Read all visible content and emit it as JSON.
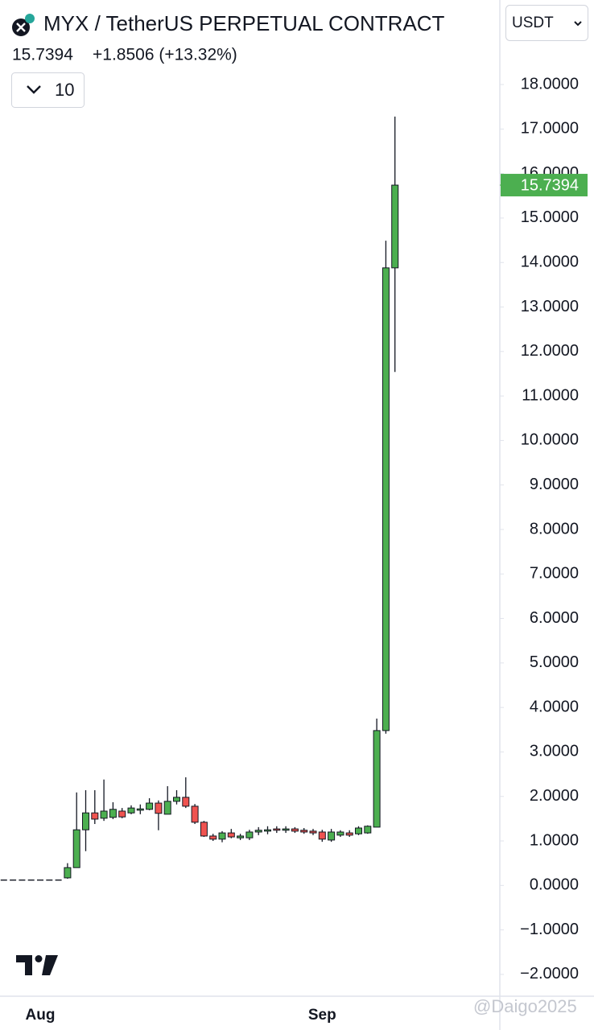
{
  "chart_data": {
    "type": "candlestick",
    "title": "MYX / TetherUS PERPETUAL CONTRACT",
    "last_price": 15.7394,
    "change": "+1.8506 (+13.32%)",
    "interval": "10",
    "currency": "USDT",
    "watermark": "@Daigo2025",
    "up_color": "#4caf50",
    "down_color": "#ef5350",
    "categories": [
      null,
      null,
      null,
      null,
      "Aug",
      null,
      null,
      null,
      null,
      null,
      null,
      null,
      null,
      null,
      null,
      null,
      null,
      null,
      null,
      null,
      null,
      null,
      null,
      null,
      null,
      null,
      null,
      null,
      null,
      null,
      null,
      null,
      null,
      null,
      null,
      "Sep",
      null,
      null,
      null,
      null,
      null,
      null,
      null,
      null
    ],
    "open": [
      0.12,
      0.12,
      0.12,
      0.12,
      0.12,
      0.12,
      0.12,
      0.17,
      0.4,
      1.25,
      1.63,
      1.51,
      1.53,
      1.67,
      1.63,
      1.69,
      1.71,
      1.85,
      1.6,
      1.89,
      1.98,
      1.78,
      1.42,
      1.11,
      1.04,
      1.18,
      1.07,
      1.07,
      1.2,
      1.22,
      1.27,
      1.24,
      1.27,
      1.24,
      1.22,
      1.2,
      1.02,
      1.13,
      1.18,
      1.16,
      1.18,
      1.31,
      3.48,
      13.88
    ],
    "high": [
      0.12,
      0.12,
      0.12,
      0.12,
      0.12,
      0.12,
      0.12,
      0.5,
      2.09,
      2.14,
      2.14,
      2.38,
      1.87,
      1.74,
      1.8,
      1.82,
      1.96,
      1.91,
      2.23,
      2.14,
      2.43,
      1.83,
      1.45,
      1.16,
      1.22,
      1.27,
      1.16,
      1.25,
      1.31,
      1.33,
      1.33,
      1.33,
      1.31,
      1.29,
      1.27,
      1.25,
      1.27,
      1.24,
      1.24,
      1.33,
      1.35,
      3.75,
      14.49,
      17.28
    ],
    "low": [
      0.12,
      0.12,
      0.12,
      0.12,
      0.12,
      0.12,
      0.12,
      0.15,
      0.4,
      0.77,
      1.38,
      1.45,
      1.49,
      1.51,
      1.6,
      1.6,
      1.69,
      1.24,
      1.6,
      1.82,
      1.74,
      1.38,
      1.09,
      1.0,
      0.97,
      1.06,
      1.02,
      1.02,
      1.13,
      1.15,
      1.18,
      1.18,
      1.18,
      1.16,
      1.13,
      0.98,
      0.98,
      1.09,
      1.09,
      1.13,
      1.16,
      1.31,
      3.41,
      11.54
    ],
    "close": [
      0.12,
      0.12,
      0.12,
      0.12,
      0.12,
      0.12,
      0.12,
      0.4,
      1.25,
      1.63,
      1.49,
      1.67,
      1.71,
      1.54,
      1.74,
      1.72,
      1.85,
      1.62,
      1.89,
      1.98,
      1.78,
      1.42,
      1.11,
      1.04,
      1.18,
      1.09,
      1.11,
      1.2,
      1.24,
      1.25,
      1.24,
      1.27,
      1.22,
      1.2,
      1.18,
      1.04,
      1.2,
      1.2,
      1.13,
      1.29,
      1.33,
      3.48,
      13.88,
      15.7394
    ],
    "ylim": [
      -2.49,
      19.9
    ],
    "yticks": [
      {
        "value": 18,
        "label": "18.0000"
      },
      {
        "value": 17,
        "label": "17.0000"
      },
      {
        "value": 16,
        "label": "16.0000"
      },
      {
        "value": 15,
        "label": "15.0000"
      },
      {
        "value": 14,
        "label": "14.0000"
      },
      {
        "value": 13,
        "label": "13.0000"
      },
      {
        "value": 12,
        "label": "12.0000"
      },
      {
        "value": 11,
        "label": "11.0000"
      },
      {
        "value": 10,
        "label": "10.0000"
      },
      {
        "value": 9,
        "label": "9.0000"
      },
      {
        "value": 8,
        "label": "8.0000"
      },
      {
        "value": 7,
        "label": "7.0000"
      },
      {
        "value": 6,
        "label": "6.0000"
      },
      {
        "value": 5,
        "label": "5.0000"
      },
      {
        "value": 4,
        "label": "4.0000"
      },
      {
        "value": 3,
        "label": "3.0000"
      },
      {
        "value": 2,
        "label": "2.0000"
      },
      {
        "value": 1,
        "label": "1.0000"
      },
      {
        "value": 0,
        "label": "0.0000"
      },
      {
        "value": -1,
        "label": "−1.0000"
      },
      {
        "value": -2,
        "label": "−2.0000"
      }
    ]
  }
}
